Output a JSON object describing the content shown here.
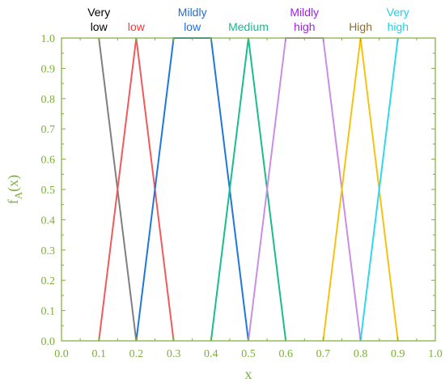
{
  "chart_data": {
    "type": "line",
    "title": "",
    "xlabel": "x",
    "ylabel_main": "f",
    "ylabel_sub": "A",
    "ylabel_tail": "(x)",
    "xlim": [
      0.0,
      1.0
    ],
    "ylim": [
      0.0,
      1.0
    ],
    "xticks": [
      "0.0",
      "0.1",
      "0.2",
      "0.3",
      "0.4",
      "0.5",
      "0.6",
      "0.7",
      "0.8",
      "0.9",
      "1.0"
    ],
    "yticks": [
      "0.0",
      "0.1",
      "0.2",
      "0.3",
      "0.4",
      "0.5",
      "0.6",
      "0.7",
      "0.8",
      "0.9",
      "1.0"
    ],
    "grid": false,
    "axis_color": "#7cae3a",
    "series": [
      {
        "name": "Very low",
        "label_lines": [
          "Very",
          "low"
        ],
        "color": "#000000",
        "line_color": "#7f7f7f",
        "x": [
          0.1,
          0.2
        ],
        "y": [
          1.0,
          0.0
        ]
      },
      {
        "name": "low",
        "label_lines": [
          "low"
        ],
        "color": "#ff3333",
        "line_color": "#f05a5a",
        "x": [
          0.1,
          0.2,
          0.3
        ],
        "y": [
          0.0,
          1.0,
          0.0
        ]
      },
      {
        "name": "Mildly low",
        "label_lines": [
          "Mildly",
          "low"
        ],
        "color": "#1f6fd6",
        "line_color": "#1f77d9",
        "x": [
          0.2,
          0.3,
          0.4,
          0.5
        ],
        "y": [
          0.0,
          1.0,
          1.0,
          0.0
        ]
      },
      {
        "name": "Medium",
        "label_lines": [
          "Medium"
        ],
        "color": "#17b890",
        "line_color": "#1abc8c",
        "x": [
          0.4,
          0.5,
          0.6
        ],
        "y": [
          0.0,
          1.0,
          0.0
        ]
      },
      {
        "name": "Mildly high",
        "label_lines": [
          "Mildly",
          "high"
        ],
        "color": "#a020f0",
        "line_color": "#c98ee6",
        "x": [
          0.5,
          0.6,
          0.7,
          0.8
        ],
        "y": [
          0.0,
          1.0,
          1.0,
          0.0
        ]
      },
      {
        "name": "High",
        "label_lines": [
          "High"
        ],
        "color": "#8c6d2c",
        "line_color": "#f5c211",
        "x": [
          0.7,
          0.8,
          0.9
        ],
        "y": [
          0.0,
          1.0,
          0.0
        ]
      },
      {
        "name": "Very high",
        "label_lines": [
          "Very",
          "high"
        ],
        "color": "#19d4e6",
        "line_color": "#2fd8ec",
        "x": [
          0.8,
          0.9
        ],
        "y": [
          0.0,
          1.0
        ]
      }
    ]
  }
}
